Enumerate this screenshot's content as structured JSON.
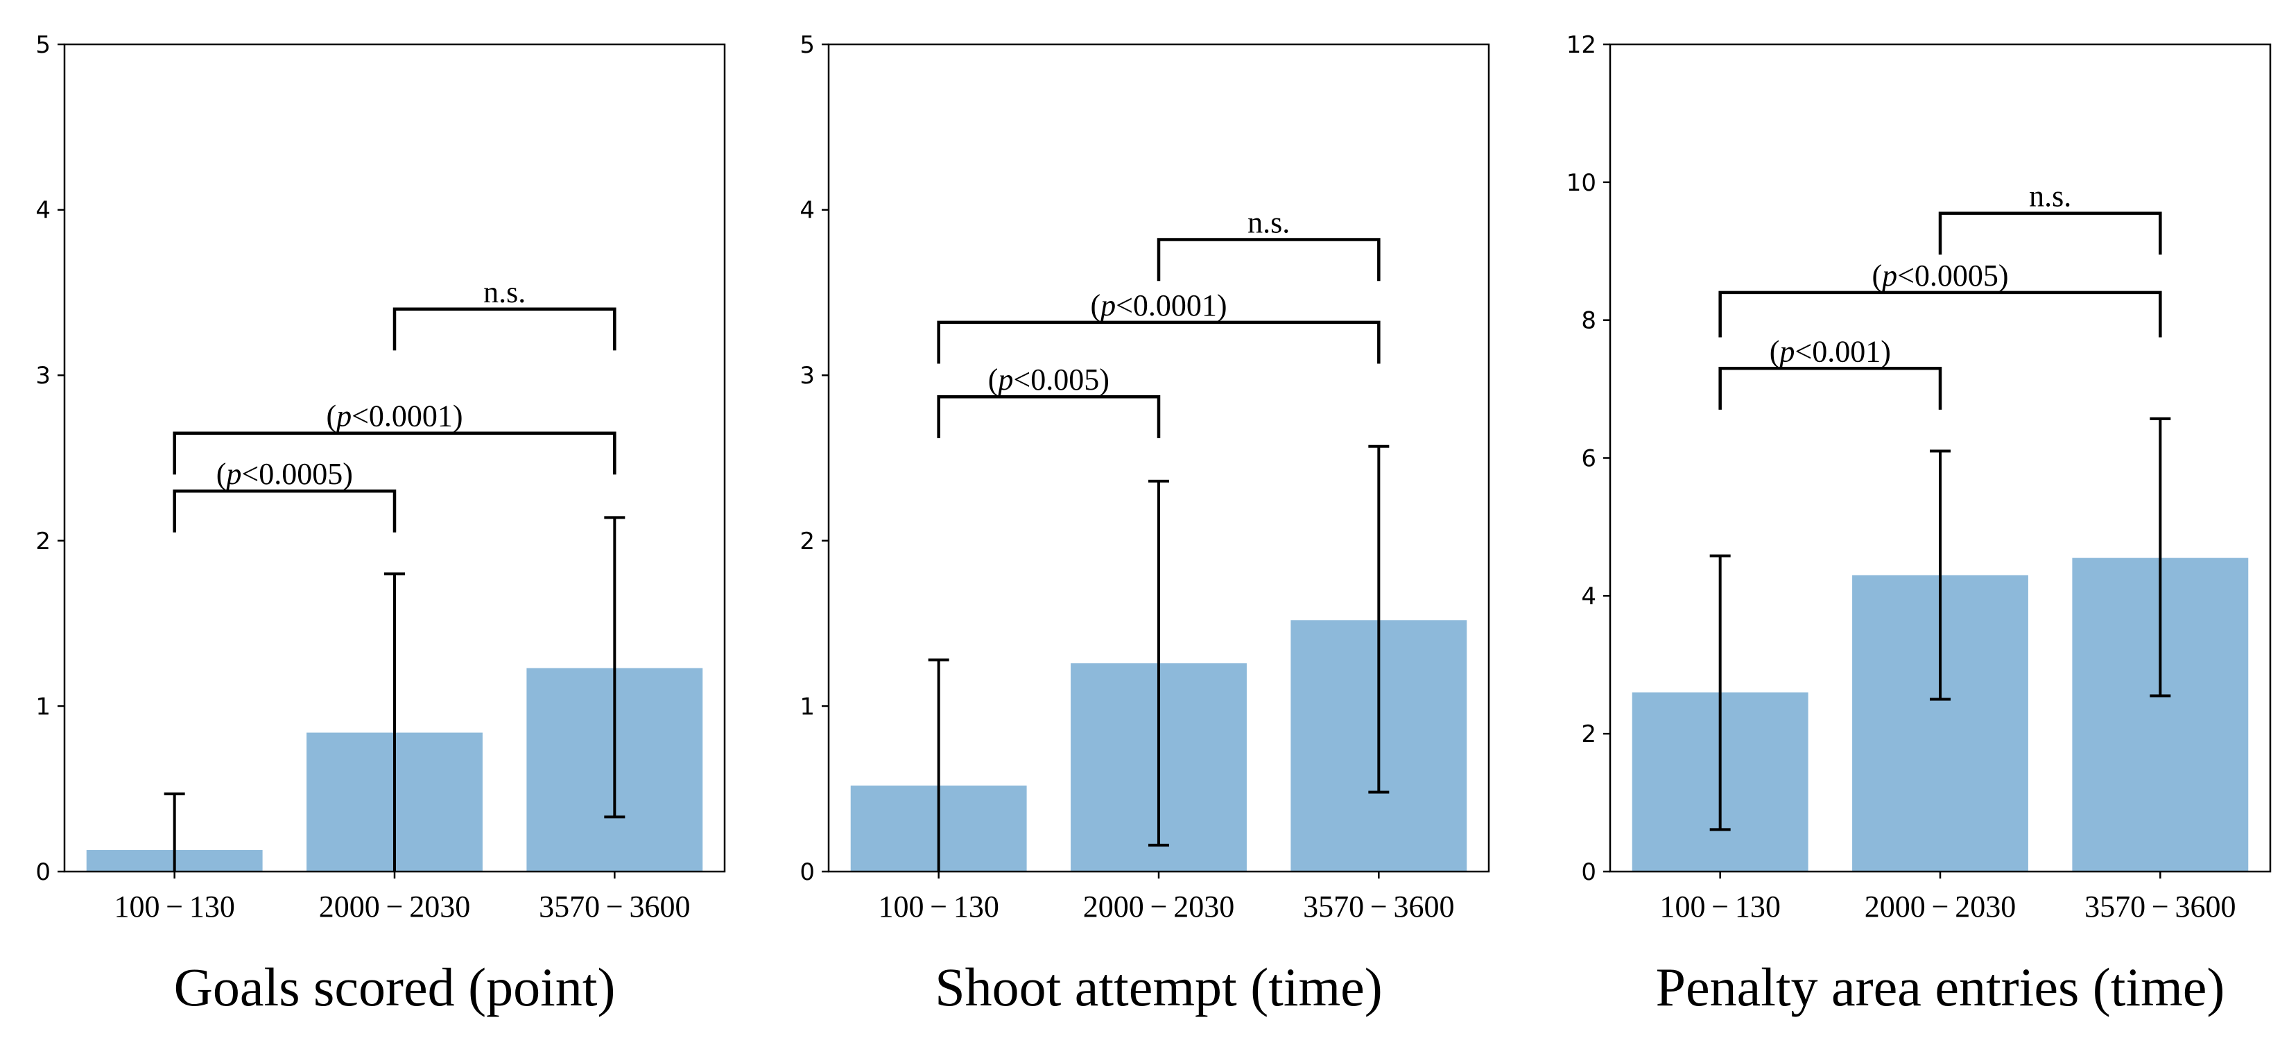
{
  "chart_data": [
    {
      "type": "bar",
      "title": "Goals scored (point)",
      "categories": [
        "100 − 130",
        "2000 − 2030",
        "3570 − 3600"
      ],
      "values": [
        0.13,
        0.84,
        1.23
      ],
      "error_low": [
        0.0,
        0.0,
        0.33
      ],
      "error_high": [
        0.47,
        1.8,
        2.14
      ],
      "ylim": [
        0,
        5
      ],
      "yticks": [
        0,
        1,
        2,
        3,
        4,
        5
      ],
      "bar_color": "#8db9da",
      "annotations": [
        {
          "from": 0,
          "to": 1,
          "y_data": [
            2.05,
            2.3
          ],
          "label": "(p<0.0005)"
        },
        {
          "from": 0,
          "to": 2,
          "y_data": [
            2.4,
            2.65
          ],
          "label": "(p<0.0001)"
        },
        {
          "from": 1,
          "to": 2,
          "y_data": [
            3.15,
            3.4
          ],
          "label": "n.s."
        }
      ]
    },
    {
      "type": "bar",
      "title": "Shoot attempt (time)",
      "categories": [
        "100 − 130",
        "2000 − 2030",
        "3570 − 3600"
      ],
      "values": [
        0.52,
        1.26,
        1.52
      ],
      "error_low": [
        0.0,
        0.16,
        0.48
      ],
      "error_high": [
        1.28,
        2.36,
        2.57
      ],
      "ylim": [
        0,
        5
      ],
      "yticks": [
        0,
        1,
        2,
        3,
        4,
        5
      ],
      "bar_color": "#8db9da",
      "annotations": [
        {
          "from": 0,
          "to": 1,
          "y_data": [
            2.62,
            2.87
          ],
          "label": "(p<0.005)"
        },
        {
          "from": 0,
          "to": 2,
          "y_data": [
            3.07,
            3.32
          ],
          "label": "(p<0.0001)"
        },
        {
          "from": 1,
          "to": 2,
          "y_data": [
            3.57,
            3.82
          ],
          "label": "n.s."
        }
      ]
    },
    {
      "type": "bar",
      "title": "Penalty area entries (time)",
      "categories": [
        "100 − 130",
        "2000 − 2030",
        "3570 − 3600"
      ],
      "values": [
        2.6,
        4.3,
        4.55
      ],
      "error_low": [
        0.61,
        2.5,
        2.55
      ],
      "error_high": [
        4.58,
        6.1,
        6.57
      ],
      "ylim": [
        0,
        12
      ],
      "yticks": [
        0,
        2,
        4,
        6,
        8,
        10,
        12
      ],
      "bar_color": "#8db9da",
      "annotations": [
        {
          "from": 0,
          "to": 1,
          "y_data": [
            6.7,
            7.3
          ],
          "label": "(p<0.001)"
        },
        {
          "from": 0,
          "to": 2,
          "y_data": [
            7.75,
            8.4
          ],
          "label": "(p<0.0005)"
        },
        {
          "from": 1,
          "to": 2,
          "y_data": [
            8.95,
            9.55
          ],
          "label": "n.s."
        }
      ]
    }
  ]
}
